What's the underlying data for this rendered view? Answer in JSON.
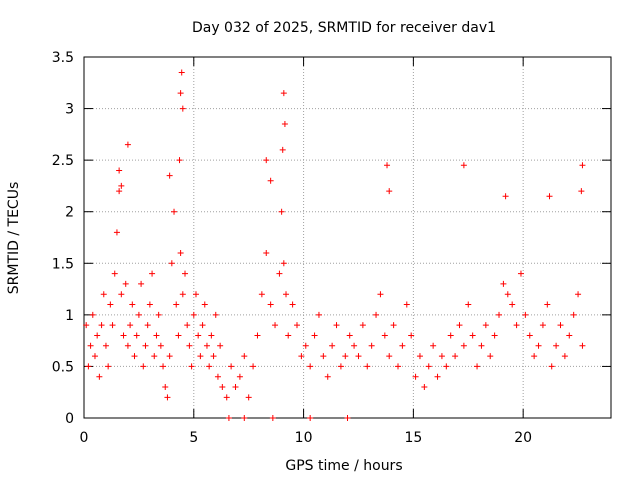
{
  "chart_data": {
    "type": "scatter",
    "title": "Day 032 of 2025, SRMTID for receiver dav1",
    "xlabel": "GPS time / hours",
    "ylabel": "SRMTID / TECUs",
    "xlim": [
      0,
      24
    ],
    "ylim": [
      0,
      3.5
    ],
    "xticks": [
      0,
      5,
      10,
      15,
      20
    ],
    "xtick_labels": [
      "0",
      "5",
      "10",
      "15",
      "20"
    ],
    "yticks": [
      0,
      0.5,
      1,
      1.5,
      2,
      2.5,
      3,
      3.5
    ],
    "ytick_labels": [
      "0",
      "0.5",
      "1",
      "1.5",
      "2",
      "2.5",
      "3",
      "3.5"
    ],
    "grid": true,
    "marker": "+",
    "series": [
      {
        "name": "dav1",
        "color": "#ff0000",
        "x": [
          0.1,
          0.2,
          0.3,
          0.4,
          0.5,
          0.6,
          0.7,
          0.8,
          0.9,
          1.0,
          1.1,
          1.2,
          1.3,
          1.4,
          1.5,
          1.6,
          1.7,
          1.8,
          1.9,
          2.0,
          2.1,
          2.2,
          2.3,
          2.4,
          2.5,
          2.6,
          2.7,
          2.8,
          2.9,
          3.0,
          3.1,
          3.2,
          3.3,
          3.4,
          3.5,
          3.6,
          3.7,
          3.8,
          3.9,
          4.0,
          4.1,
          4.2,
          4.3,
          4.4,
          4.5,
          4.6,
          4.7,
          4.8,
          4.9,
          5.0,
          5.1,
          5.2,
          5.3,
          5.4,
          5.5,
          5.6,
          5.7,
          5.8,
          5.9,
          6.0,
          6.1,
          6.2,
          6.3,
          6.5,
          6.7,
          6.9,
          7.1,
          7.3,
          7.5,
          7.7,
          7.9,
          8.1,
          8.3,
          8.5,
          8.7,
          8.9,
          9.0,
          9.1,
          9.2,
          9.3,
          9.5,
          9.7,
          9.9,
          10.1,
          10.3,
          10.5,
          10.7,
          10.9,
          11.1,
          11.3,
          11.5,
          11.7,
          11.9,
          12.1,
          12.3,
          12.5,
          12.7,
          12.9,
          13.1,
          13.3,
          13.5,
          13.7,
          13.9,
          14.1,
          14.3,
          14.5,
          14.7,
          14.9,
          15.1,
          15.3,
          15.5,
          15.7,
          15.9,
          16.1,
          16.3,
          16.5,
          16.7,
          16.9,
          17.1,
          17.3,
          17.5,
          17.7,
          17.9,
          18.1,
          18.3,
          18.5,
          18.7,
          18.9,
          19.1,
          19.3,
          19.5,
          19.7,
          19.9,
          20.1,
          20.3,
          20.5,
          20.7,
          20.9,
          21.1,
          21.3,
          21.5,
          21.7,
          21.9,
          22.1,
          22.3,
          22.5,
          22.7,
          4.45,
          4.4,
          4.5,
          4.35,
          9.1,
          9.15,
          9.05,
          13.8,
          13.9,
          17.3,
          19.2,
          21.2,
          22.7,
          22.65,
          1.6,
          1.7,
          2.0,
          8.3,
          8.5,
          3.9,
          6.6,
          7.3,
          8.6,
          10.3,
          12.0
        ],
        "y": [
          0.9,
          0.5,
          0.7,
          1.0,
          0.6,
          0.8,
          0.4,
          0.9,
          1.2,
          0.7,
          0.5,
          1.1,
          0.9,
          1.4,
          1.8,
          2.2,
          1.2,
          0.8,
          1.3,
          0.7,
          0.9,
          1.1,
          0.6,
          0.8,
          1.0,
          1.3,
          0.5,
          0.7,
          0.9,
          1.1,
          1.4,
          0.6,
          0.8,
          1.0,
          0.7,
          0.5,
          0.3,
          0.2,
          0.6,
          1.5,
          2.0,
          1.1,
          0.8,
          1.6,
          1.2,
          1.4,
          0.9,
          0.7,
          0.5,
          1.0,
          1.2,
          0.8,
          0.6,
          0.9,
          1.1,
          0.7,
          0.5,
          0.8,
          0.6,
          1.0,
          0.4,
          0.7,
          0.3,
          0.2,
          0.5,
          0.3,
          0.4,
          0.6,
          0.2,
          0.5,
          0.8,
          1.2,
          1.6,
          1.1,
          0.9,
          1.4,
          2.0,
          1.5,
          1.2,
          0.8,
          1.1,
          0.9,
          0.6,
          0.7,
          0.5,
          0.8,
          1.0,
          0.6,
          0.4,
          0.7,
          0.9,
          0.5,
          0.6,
          0.8,
          0.7,
          0.6,
          0.9,
          0.5,
          0.7,
          1.0,
          1.2,
          0.8,
          0.6,
          0.9,
          0.5,
          0.7,
          1.1,
          0.8,
          0.4,
          0.6,
          0.3,
          0.5,
          0.7,
          0.4,
          0.6,
          0.5,
          0.8,
          0.6,
          0.9,
          0.7,
          1.1,
          0.8,
          0.5,
          0.7,
          0.9,
          0.6,
          0.8,
          1.0,
          1.3,
          1.2,
          1.1,
          0.9,
          1.4,
          1.0,
          0.8,
          0.6,
          0.7,
          0.9,
          1.1,
          0.5,
          0.7,
          0.9,
          0.6,
          0.8,
          1.0,
          1.2,
          0.7,
          3.35,
          3.15,
          3.0,
          2.5,
          3.15,
          2.85,
          2.6,
          2.45,
          2.2,
          2.45,
          2.15,
          2.15,
          2.45,
          2.2,
          2.4,
          2.25,
          2.65,
          2.5,
          2.3,
          2.35,
          0.0,
          0.0,
          0.0,
          0.0,
          0.0
        ]
      }
    ]
  }
}
